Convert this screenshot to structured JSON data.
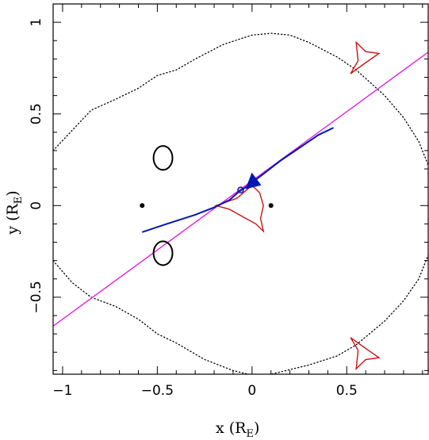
{
  "chart_data": {
    "type": "line",
    "xlabel": "x (R",
    "xlabel_sub": "E",
    "xlabel_close": ")",
    "ylabel": "y (R",
    "ylabel_sub": "E",
    "ylabel_close": ")",
    "xlim": [
      -1.05,
      0.93
    ],
    "ylim": [
      -0.92,
      1.1
    ],
    "x_ticks": [
      {
        "value": -1,
        "label": "−1"
      },
      {
        "value": -0.5,
        "label": "−0.5"
      },
      {
        "value": 0,
        "label": "0"
      },
      {
        "value": 0.5,
        "label": "0.5"
      }
    ],
    "y_ticks": [
      {
        "value": -0.5,
        "label": "−0.5"
      },
      {
        "value": 0,
        "label": "0"
      },
      {
        "value": 0.5,
        "label": "0.5"
      },
      {
        "value": 1,
        "label": "1"
      }
    ],
    "grid": false,
    "lens_positions": [
      {
        "x": -0.58,
        "y": 0.0
      },
      {
        "x": 0.1,
        "y": 0.0
      }
    ],
    "source_position": {
      "x": -0.06,
      "y": 0.085
    },
    "source_trajectory": {
      "slope": 0.755,
      "intercept": 0.135,
      "color": "#e020e0"
    },
    "images_track": {
      "color": "#0018b0",
      "points": [
        [
          -0.58,
          -0.145
        ],
        [
          -0.45,
          -0.1
        ],
        [
          -0.3,
          -0.05
        ],
        [
          -0.2,
          -0.01
        ],
        [
          -0.12,
          0.03
        ],
        [
          -0.07,
          0.075
        ],
        [
          -0.02,
          0.11
        ],
        [
          0.05,
          0.165
        ],
        [
          0.15,
          0.245
        ],
        [
          0.25,
          0.315
        ],
        [
          0.35,
          0.385
        ],
        [
          0.43,
          0.425
        ]
      ]
    },
    "small_images": [
      {
        "cx": -0.47,
        "cy": 0.26,
        "rx": 0.05,
        "ry": 0.065
      },
      {
        "cx": -0.47,
        "cy": -0.26,
        "rx": 0.05,
        "ry": 0.065
      }
    ],
    "critical_curve": {
      "color": "#000000",
      "points": [
        [
          -1.05,
          0.3
        ],
        [
          -0.85,
          0.52
        ],
        [
          -0.72,
          0.58
        ],
        [
          -0.6,
          0.64
        ],
        [
          -0.5,
          0.71
        ],
        [
          -0.4,
          0.74
        ],
        [
          -0.3,
          0.8
        ],
        [
          -0.15,
          0.88
        ],
        [
          0.0,
          0.93
        ],
        [
          0.1,
          0.94
        ],
        [
          0.2,
          0.93
        ],
        [
          0.3,
          0.89
        ],
        [
          0.45,
          0.81
        ],
        [
          0.55,
          0.74
        ],
        [
          0.7,
          0.6
        ],
        [
          0.8,
          0.48
        ],
        [
          0.88,
          0.35
        ],
        [
          0.93,
          0.22
        ]
      ]
    },
    "critical_curve_bottom": {
      "points": [
        [
          -1.05,
          -0.3
        ],
        [
          -0.95,
          -0.42
        ],
        [
          -0.85,
          -0.5
        ],
        [
          -0.72,
          -0.55
        ],
        [
          -0.6,
          -0.62
        ],
        [
          -0.5,
          -0.7
        ],
        [
          -0.4,
          -0.75
        ],
        [
          -0.25,
          -0.84
        ],
        [
          -0.1,
          -0.9
        ],
        [
          0.0,
          -0.925
        ],
        [
          0.1,
          -0.92
        ],
        [
          0.3,
          -0.87
        ],
        [
          0.45,
          -0.82
        ],
        [
          0.55,
          -0.76
        ],
        [
          0.7,
          -0.63
        ],
        [
          0.8,
          -0.52
        ],
        [
          0.88,
          -0.4
        ],
        [
          0.93,
          -0.27
        ]
      ]
    },
    "caustics": {
      "color": "#d01010",
      "central": [
        [
          -0.19,
          0.0
        ],
        [
          -0.08,
          0.04
        ],
        [
          0.0,
          0.11
        ],
        [
          0.04,
          0.07
        ],
        [
          0.06,
          0.0
        ],
        [
          0.045,
          -0.07
        ],
        [
          0.06,
          -0.14
        ],
        [
          0.02,
          -0.1
        ],
        [
          -0.05,
          -0.06
        ],
        [
          -0.12,
          -0.02
        ],
        [
          -0.19,
          0.0
        ]
      ],
      "top": [
        [
          0.52,
          0.72
        ],
        [
          0.56,
          0.79
        ],
        [
          0.55,
          0.89
        ],
        [
          0.6,
          0.84
        ],
        [
          0.67,
          0.83
        ],
        [
          0.6,
          0.78
        ],
        [
          0.52,
          0.72
        ]
      ],
      "bottom": [
        [
          0.52,
          -0.72
        ],
        [
          0.56,
          -0.79
        ],
        [
          0.55,
          -0.89
        ],
        [
          0.6,
          -0.84
        ],
        [
          0.67,
          -0.83
        ],
        [
          0.6,
          -0.78
        ],
        [
          0.52,
          -0.72
        ]
      ]
    }
  }
}
